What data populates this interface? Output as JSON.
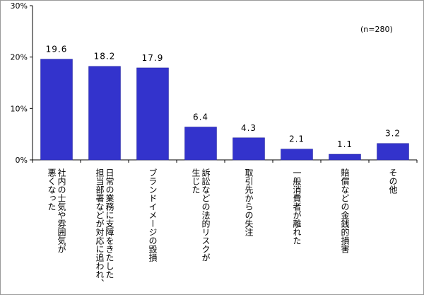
{
  "chart_data": {
    "type": "bar",
    "title": "",
    "xlabel": "",
    "ylabel": "",
    "ylim": [
      0,
      30
    ],
    "yticks": [
      "0%",
      "10%",
      "20%",
      "30%"
    ],
    "note": "(n=280)",
    "grid": false,
    "colors": {
      "bar": "#3333cc",
      "border": "#9a9a9a"
    },
    "categories": [
      [
        "社内の士気や雰囲気が",
        "悪くなった"
      ],
      [
        "日常の業務に支障をきたした",
        "担当部署などが対応に追われ、"
      ],
      [
        "ブランドイメージの毀損"
      ],
      [
        "訴訟などの法的リスクが",
        "生じた"
      ],
      [
        "取引先からの失注"
      ],
      [
        "一般消費者が離れた"
      ],
      [
        "賠償などの金銭的損害"
      ],
      [
        "その他"
      ]
    ],
    "values": [
      19.6,
      18.2,
      17.9,
      6.4,
      4.3,
      2.1,
      1.1,
      3.2
    ],
    "value_labels": [
      "19.6",
      "18.2",
      "17.9",
      "6.4",
      "4.3",
      "2.1",
      "1.1",
      "3.2"
    ]
  }
}
